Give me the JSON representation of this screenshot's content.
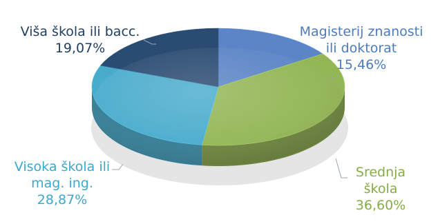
{
  "chart_data": {
    "type": "pie",
    "style": "3d",
    "title": "",
    "slices": [
      {
        "label_lines": [
          "Magisterij znanosti",
          "ili doktorat"
        ],
        "value_label": "15,46%",
        "value": 15.46,
        "color": "#5b85c6"
      },
      {
        "label_lines": [
          "Srednja",
          "škola"
        ],
        "value_label": "36,60%",
        "value": 36.6,
        "color": "#94b656"
      },
      {
        "label_lines": [
          "Visoka škola ili",
          "mag. ing."
        ],
        "value_label": "28,87%",
        "value": 28.87,
        "color": "#4aaccd"
      },
      {
        "label_lines": [
          "Viša škola ili bacc."
        ],
        "value_label": "19,07%",
        "value": 19.07,
        "color": "#2a4b72"
      }
    ],
    "label_colors": [
      "#4a7bbf",
      "#86ad45",
      "#3ba8cf",
      "#1f3e64"
    ],
    "legend": "none"
  }
}
